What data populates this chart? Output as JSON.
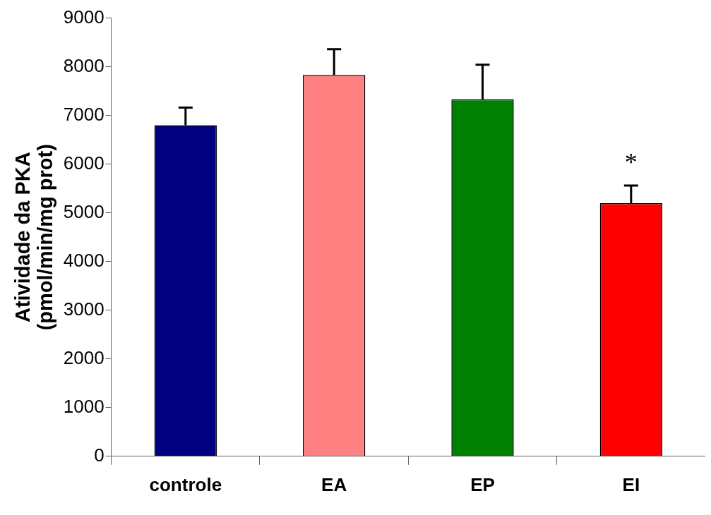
{
  "chart_data": {
    "type": "bar",
    "ylabel": "Atividade da PKA\n(pmol/min/mg prot)",
    "categories": [
      "controle",
      "EA",
      "EP",
      "EI"
    ],
    "values": [
      6800,
      7830,
      7330,
      5200
    ],
    "colors": [
      "#000080",
      "#ff8080",
      "#008000",
      "#ff0000"
    ],
    "errors": [
      [
        6800,
        7160
      ],
      [
        7830,
        8360
      ],
      [
        7330,
        8040
      ],
      [
        5200,
        5560
      ]
    ],
    "ylim": [
      0,
      9000
    ],
    "yticks": [
      0,
      1000,
      2000,
      3000,
      4000,
      5000,
      6000,
      7000,
      8000,
      9000
    ],
    "grid": false,
    "legend": false,
    "annotations": [
      {
        "text": "*",
        "x": "EI",
        "y": 5560
      }
    ]
  }
}
